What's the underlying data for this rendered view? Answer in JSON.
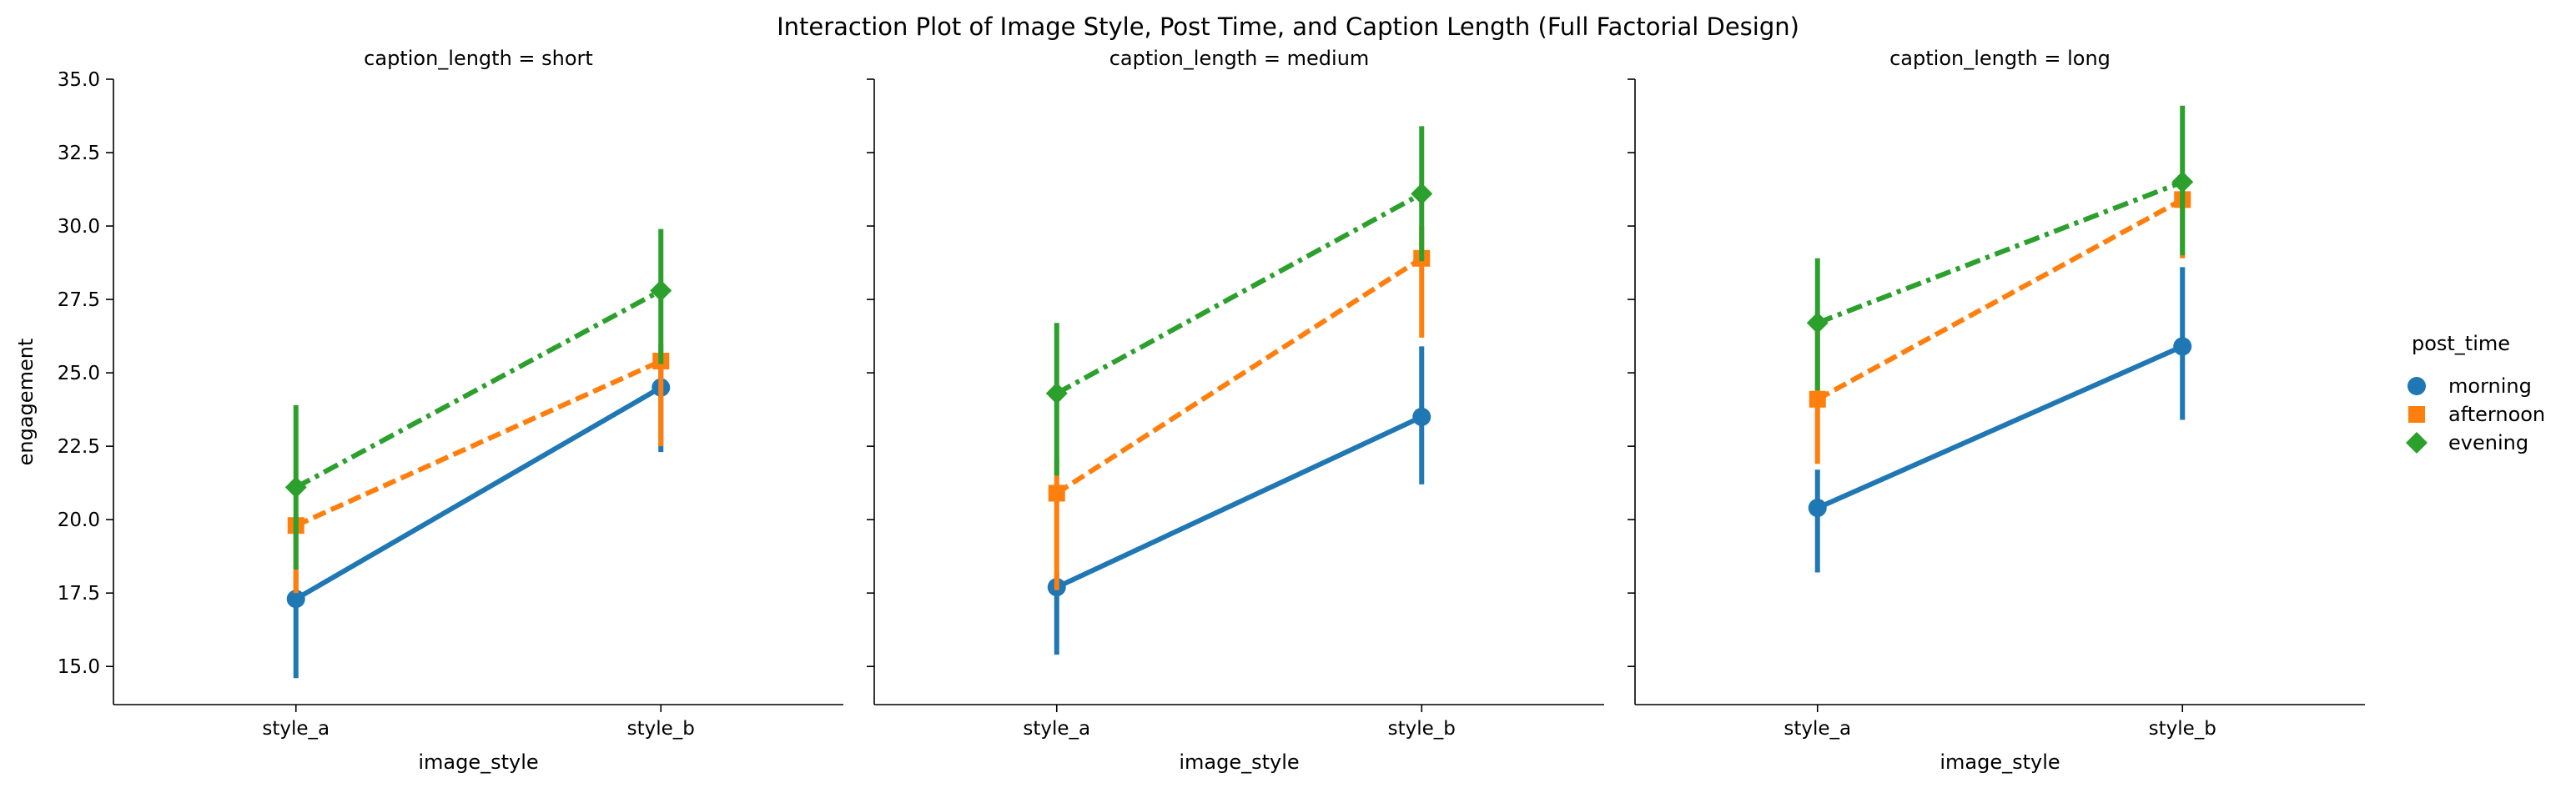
{
  "chart_data": {
    "type": "line",
    "title": "Interaction Plot of Image Style, Post Time, and Caption Length (Full Factorial Design)",
    "xlabel": "image_style",
    "ylabel": "engagement",
    "ylim": [
      13.7,
      35.0
    ],
    "yticks": [
      "15.0",
      "17.5",
      "20.0",
      "22.5",
      "25.0",
      "27.5",
      "30.0",
      "32.5",
      "35.0"
    ],
    "categories": [
      "style_a",
      "style_b"
    ],
    "legend_title": "post_time",
    "legend_position": "right",
    "grid": false,
    "panels": [
      {
        "title": "caption_length = short",
        "series": [
          {
            "name": "morning",
            "values": [
              17.3,
              24.5
            ],
            "ci_low": [
              14.6,
              22.3
            ],
            "ci_high": [
              18.2,
              25.3
            ]
          },
          {
            "name": "afternoon",
            "values": [
              19.8,
              25.4
            ],
            "ci_low": [
              17.5,
              22.5
            ],
            "ci_high": [
              20.0,
              26.0
            ]
          },
          {
            "name": "evening",
            "values": [
              21.1,
              27.8
            ],
            "ci_low": [
              18.3,
              25.3
            ],
            "ci_high": [
              23.9,
              29.9
            ]
          }
        ]
      },
      {
        "title": "caption_length = medium",
        "series": [
          {
            "name": "morning",
            "values": [
              17.7,
              23.5
            ],
            "ci_low": [
              15.4,
              21.2
            ],
            "ci_high": [
              18.2,
              25.9
            ]
          },
          {
            "name": "afternoon",
            "values": [
              20.9,
              28.9
            ],
            "ci_low": [
              17.6,
              26.2
            ],
            "ci_high": [
              22.1,
              30.0
            ]
          },
          {
            "name": "evening",
            "values": [
              24.3,
              31.1
            ],
            "ci_low": [
              21.5,
              28.8
            ],
            "ci_high": [
              26.7,
              33.4
            ]
          }
        ]
      },
      {
        "title": "caption_length = long",
        "series": [
          {
            "name": "morning",
            "values": [
              20.4,
              25.9
            ],
            "ci_low": [
              18.2,
              23.4
            ],
            "ci_high": [
              21.7,
              28.6
            ]
          },
          {
            "name": "afternoon",
            "values": [
              24.1,
              30.9
            ],
            "ci_low": [
              21.9,
              28.9
            ],
            "ci_high": [
              26.5,
              31.3
            ]
          },
          {
            "name": "evening",
            "values": [
              26.7,
              31.5
            ],
            "ci_low": [
              24.4,
              29.0
            ],
            "ci_high": [
              28.9,
              34.1
            ]
          }
        ]
      }
    ],
    "series_styles": [
      {
        "name": "morning",
        "color": "#1f77b4",
        "marker": "circle",
        "dash": "solid"
      },
      {
        "name": "afternoon",
        "color": "#ff7f0e",
        "marker": "square",
        "dash": "dashed"
      },
      {
        "name": "evening",
        "color": "#2ca02c",
        "marker": "diamond",
        "dash": "dashdot"
      }
    ]
  }
}
